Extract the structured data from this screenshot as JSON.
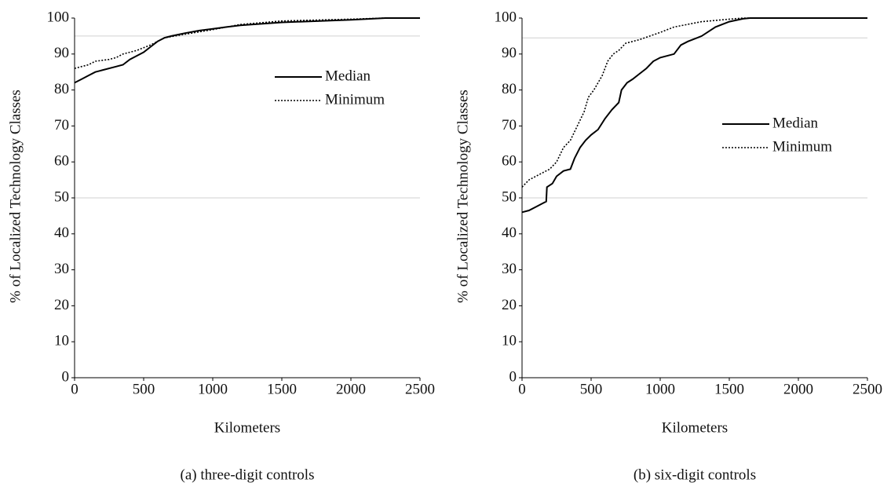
{
  "chart_data": [
    {
      "type": "line",
      "caption": "(a) three-digit controls",
      "x_label": "Kilometers",
      "y_label": "% of Localized Technology Classes",
      "xlim": [
        0,
        2500
      ],
      "ylim": [
        0,
        100
      ],
      "xticks": [
        0,
        500,
        1000,
        1500,
        2000,
        2500
      ],
      "yticks": [
        0,
        10,
        20,
        30,
        40,
        50,
        60,
        70,
        80,
        90,
        100
      ],
      "hlines": [
        95,
        50
      ],
      "hline_color": "#d0d0d0",
      "legend": "center right",
      "series": [
        {
          "name": "Median",
          "color": "#000000",
          "style": "solid",
          "x": [
            0,
            50,
            100,
            150,
            200,
            300,
            350,
            400,
            450,
            500,
            550,
            600,
            650,
            700,
            800,
            900,
            1000,
            1100,
            1200,
            1500,
            2000,
            2250,
            2500
          ],
          "values": [
            82,
            83,
            84,
            85,
            85.5,
            86.5,
            87,
            88.5,
            89.5,
            90.5,
            92,
            93.5,
            94.5,
            95,
            95.8,
            96.5,
            97,
            97.5,
            98,
            98.8,
            99.5,
            100,
            100
          ]
        },
        {
          "name": "Minimum",
          "color": "#000000",
          "style": "dotted",
          "x": [
            0,
            100,
            150,
            250,
            300,
            350,
            450,
            550,
            650,
            800,
            1000,
            1200,
            1500,
            2000,
            2250,
            2500
          ],
          "values": [
            86,
            87,
            88,
            88.5,
            89,
            90,
            91,
            92.5,
            94.5,
            95.5,
            96.8,
            98.2,
            99.2,
            99.7,
            100,
            100
          ]
        }
      ]
    },
    {
      "type": "line",
      "caption": "(b) six-digit controls",
      "x_label": "Kilometers",
      "y_label": "% of Localized Technology Classes",
      "xlim": [
        0,
        2500
      ],
      "ylim": [
        0,
        100
      ],
      "xticks": [
        0,
        500,
        1000,
        1500,
        2000,
        2500
      ],
      "yticks": [
        0,
        10,
        20,
        30,
        40,
        50,
        60,
        70,
        80,
        90,
        100
      ],
      "hlines": [
        94.5,
        50
      ],
      "hline_color": "#d0d0d0",
      "legend": "center right",
      "series": [
        {
          "name": "Median",
          "color": "#000000",
          "style": "solid",
          "x": [
            0,
            50,
            100,
            150,
            175,
            180,
            220,
            250,
            300,
            350,
            380,
            420,
            460,
            500,
            550,
            600,
            650,
            700,
            720,
            760,
            800,
            850,
            900,
            950,
            1000,
            1100,
            1150,
            1200,
            1300,
            1400,
            1500,
            1600,
            1650,
            2500
          ],
          "values": [
            46,
            46.5,
            47.5,
            48.5,
            49,
            53,
            54,
            56,
            57.5,
            58,
            61,
            64,
            66,
            67.5,
            69,
            72,
            74.5,
            76.5,
            80,
            82,
            83,
            84.5,
            86,
            88,
            89,
            90,
            92.5,
            93.5,
            95,
            97.5,
            99,
            99.8,
            100,
            100
          ]
        },
        {
          "name": "Minimum",
          "color": "#000000",
          "style": "dotted",
          "x": [
            0,
            50,
            100,
            150,
            200,
            250,
            300,
            350,
            400,
            450,
            480,
            520,
            580,
            620,
            660,
            700,
            750,
            850,
            1000,
            1100,
            1300,
            1500,
            1600,
            2500
          ],
          "values": [
            53,
            55,
            56,
            57,
            58,
            60,
            64,
            66,
            70,
            74,
            78,
            80,
            84,
            88,
            90,
            91,
            93,
            94,
            96,
            97.5,
            99,
            99.7,
            100,
            100
          ]
        }
      ]
    }
  ]
}
